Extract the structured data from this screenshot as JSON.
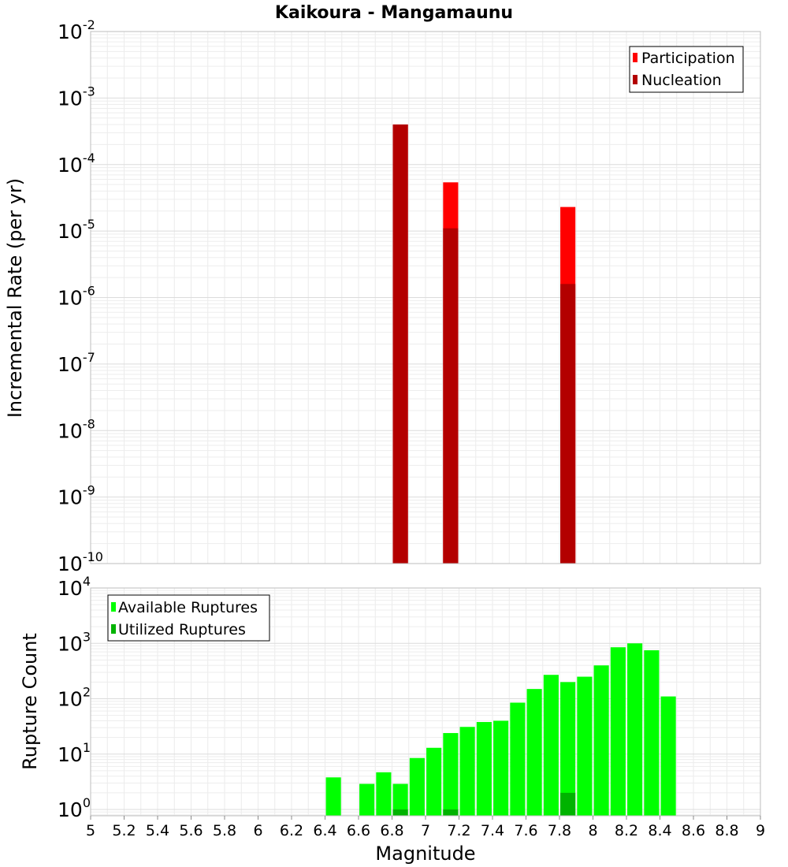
{
  "title": "Kaikoura - Mangamaunu",
  "chart_data": [
    {
      "type": "bar",
      "title": "Kaikoura - Mangamaunu",
      "xlabel": "Magnitude",
      "ylabel": "Incremental Rate (per yr)",
      "yscale": "log",
      "xlim": [
        5,
        9
      ],
      "ylim": [
        1e-10,
        0.01
      ],
      "y_tick_exponents": [
        -10,
        -9,
        -8,
        -7,
        -6,
        -5,
        -4,
        -3,
        -2
      ],
      "grid": true,
      "legend_position": "top-right",
      "bar_width": 0.09,
      "series": [
        {
          "name": "Participation",
          "color": "#ff0000",
          "x": [
            6.85,
            7.15,
            7.85
          ],
          "values": [
            0.0004,
            5.4e-05,
            2.3e-05
          ]
        },
        {
          "name": "Nucleation",
          "color": "#b30000",
          "x": [
            6.85,
            7.15,
            7.85
          ],
          "values": [
            0.0004,
            1.1e-05,
            1.6e-06
          ]
        }
      ]
    },
    {
      "type": "bar",
      "xlabel": "Magnitude",
      "ylabel": "Rupture Count",
      "yscale": "log",
      "xlim": [
        5,
        9
      ],
      "ylim": [
        0.77,
        10000
      ],
      "y_tick_exponents": [
        0,
        1,
        2,
        3,
        4
      ],
      "x_ticks": [
        "5",
        "5.2",
        "5.4",
        "5.6",
        "5.8",
        "6",
        "6.2",
        "6.4",
        "6.6",
        "6.8",
        "7",
        "7.2",
        "7.4",
        "7.6",
        "7.8",
        "8",
        "8.2",
        "8.4",
        "8.6",
        "8.8",
        "9"
      ],
      "grid": true,
      "legend_position": "top-left",
      "bar_width": 0.09,
      "series": [
        {
          "name": "Available Ruptures",
          "color": "#00ff00",
          "x": [
            6.45,
            6.65,
            6.75,
            6.85,
            6.95,
            7.05,
            7.15,
            7.25,
            7.35,
            7.45,
            7.55,
            7.65,
            7.75,
            7.85,
            7.95,
            8.05,
            8.15,
            8.25,
            8.35,
            8.45
          ],
          "values": [
            3.8,
            2.9,
            4.7,
            2.9,
            8.5,
            13,
            24,
            31,
            38,
            40,
            85,
            150,
            270,
            200,
            250,
            400,
            850,
            1000,
            750,
            110
          ]
        },
        {
          "name": "Utilized Ruptures",
          "color": "#00b300",
          "x": [
            6.85,
            7.15,
            7.85
          ],
          "values": [
            1,
            1,
            2
          ]
        }
      ]
    }
  ]
}
